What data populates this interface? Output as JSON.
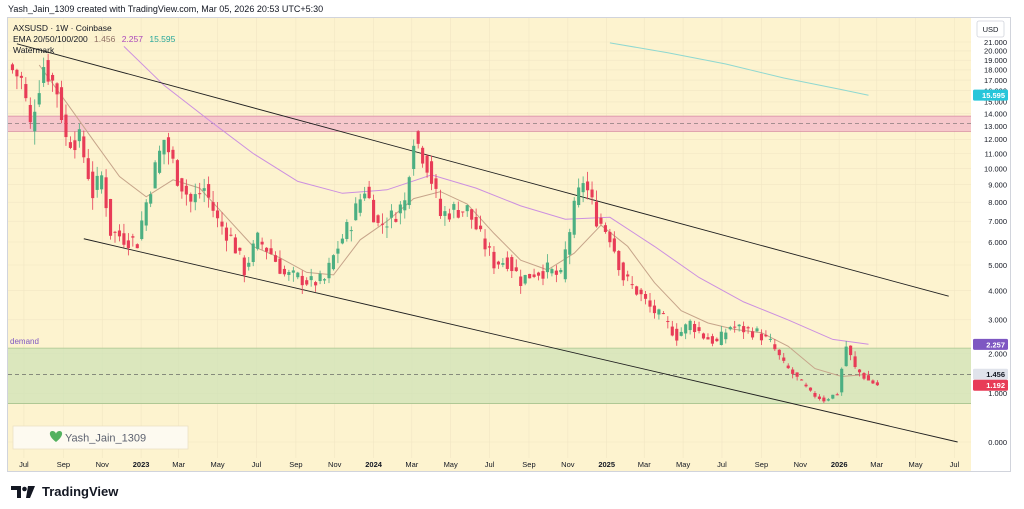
{
  "header": {
    "credit": "Yash_Jain_1309 created with TradingView.com, Mar 05, 2026 20:53 UTC+5:30"
  },
  "legend": {
    "symbol_line": "AXSUSD · 1W · Coinbase",
    "ema_label": "EMA 20/50/100/200",
    "ema_values": [
      "1.456",
      "2.257",
      "15.595"
    ],
    "watermark_label": "Watermark"
  },
  "zone_label": "demand",
  "watermark_name": "Yash_Jain_1309",
  "currency": "USD",
  "footer": {
    "brand": "TradingView"
  },
  "colors": {
    "bg": "#fdf3cf",
    "up": "#4caf82",
    "down": "#e83c57",
    "ema20": "#c6a48a",
    "ema50": "#cc8fe0",
    "ema200": "#8fd8d0",
    "supply_zone": "#f3b8c9",
    "demand_zone": "#cfe3b7",
    "trend": "#202020"
  },
  "chart_data": {
    "type": "candlestick",
    "y_scale": "log",
    "ylim": [
      0,
      21
    ],
    "y_ticks": [
      0,
      1,
      2,
      3,
      4,
      5,
      6,
      7,
      8,
      9,
      10,
      11,
      12,
      13,
      14,
      15,
      16,
      17,
      18,
      19,
      20,
      21
    ],
    "y_tick_labels": [
      "0.000",
      "1.000",
      "2.000",
      "3.000",
      "4.000",
      "5.000",
      "6.000",
      "7.000",
      "8.000",
      "9.000",
      "10.000",
      "11.000",
      "12.000",
      "13.000",
      "14.000",
      "15.000",
      "16.000",
      "17.000",
      "18.000",
      "19.000",
      "20.000",
      "21.000"
    ],
    "x_range": [
      "2022-06-06",
      "2026-07-27"
    ],
    "x_ticks": [
      {
        "date": "2022-07-01",
        "label": "Jul"
      },
      {
        "date": "2022-09-01",
        "label": "Sep"
      },
      {
        "date": "2022-11-01",
        "label": "Nov"
      },
      {
        "date": "2023-01-01",
        "label": "2023"
      },
      {
        "date": "2023-03-01",
        "label": "Mar"
      },
      {
        "date": "2023-05-01",
        "label": "May"
      },
      {
        "date": "2023-07-01",
        "label": "Jul"
      },
      {
        "date": "2023-09-01",
        "label": "Sep"
      },
      {
        "date": "2023-11-01",
        "label": "Nov"
      },
      {
        "date": "2024-01-01",
        "label": "2024"
      },
      {
        "date": "2024-03-01",
        "label": "Mar"
      },
      {
        "date": "2024-05-01",
        "label": "May"
      },
      {
        "date": "2024-07-01",
        "label": "Jul"
      },
      {
        "date": "2024-09-01",
        "label": "Sep"
      },
      {
        "date": "2024-11-01",
        "label": "Nov"
      },
      {
        "date": "2025-01-01",
        "label": "2025"
      },
      {
        "date": "2025-03-01",
        "label": "Mar"
      },
      {
        "date": "2025-05-01",
        "label": "May"
      },
      {
        "date": "2025-07-01",
        "label": "Jul"
      },
      {
        "date": "2025-09-01",
        "label": "Sep"
      },
      {
        "date": "2025-11-01",
        "label": "Nov"
      },
      {
        "date": "2026-01-01",
        "label": "2026"
      },
      {
        "date": "2026-03-01",
        "label": "Mar"
      },
      {
        "date": "2026-05-01",
        "label": "May"
      },
      {
        "date": "2026-07-01",
        "label": "Jul"
      }
    ],
    "price_tags": [
      {
        "value": 15.595,
        "label": "15.595",
        "color": "#26c6da",
        "text_color": "#ffffff"
      },
      {
        "value": 2.257,
        "label": "2.257",
        "color": "#7e57c2",
        "text_color": "#ffffff"
      },
      {
        "value": 1.456,
        "label": "1.456",
        "color": "#e0e3eb",
        "text_color": "#131722"
      },
      {
        "value": 1.192,
        "label": "1.192",
        "color": "#e83c57",
        "text_color": "#ffffff"
      }
    ],
    "zones": [
      {
        "name": "supply",
        "y_low": 12.6,
        "y_high": 13.8,
        "mid": 13.2
      },
      {
        "name": "demand",
        "y_low": 0.77,
        "y_high": 2.15,
        "mid": 1.45
      }
    ],
    "trendlines": [
      {
        "name": "upper",
        "x1": "2022-06-20",
        "y1": 20.8,
        "x2": "2026-06-22",
        "y2": 3.8
      },
      {
        "name": "lower",
        "x1": "2022-10-03",
        "y1": 6.15,
        "x2": "2026-07-06",
        "y2": 0.0
      }
    ],
    "anchors": [
      [
        "2022-06-06",
        18.5
      ],
      [
        "2022-06-27",
        17
      ],
      [
        "2022-07-11",
        13
      ],
      [
        "2022-08-01",
        18.5
      ],
      [
        "2022-08-22",
        16
      ],
      [
        "2022-09-05",
        12
      ],
      [
        "2022-09-26",
        12
      ],
      [
        "2022-10-17",
        8.5
      ],
      [
        "2022-10-31",
        9.5
      ],
      [
        "2022-11-14",
        6.5
      ],
      [
        "2022-12-05",
        6.2
      ],
      [
        "2022-12-26",
        6.0
      ],
      [
        "2023-01-16",
        9.0
      ],
      [
        "2023-02-06",
        12.0
      ],
      [
        "2023-02-27",
        9.5
      ],
      [
        "2023-03-20",
        8.0
      ],
      [
        "2023-04-10",
        8.8
      ],
      [
        "2023-05-01",
        7.0
      ],
      [
        "2023-05-22",
        6.2
      ],
      [
        "2023-06-12",
        4.8
      ],
      [
        "2023-07-03",
        6.1
      ],
      [
        "2023-07-24",
        5.5
      ],
      [
        "2023-08-14",
        4.6
      ],
      [
        "2023-09-04",
        4.5
      ],
      [
        "2023-09-25",
        4.3
      ],
      [
        "2023-10-16",
        4.4
      ],
      [
        "2023-11-06",
        5.8
      ],
      [
        "2023-11-27",
        7.0
      ],
      [
        "2023-12-18",
        8.8
      ],
      [
        "2024-01-08",
        6.8
      ],
      [
        "2024-01-29",
        7.2
      ],
      [
        "2024-02-19",
        8.0
      ],
      [
        "2024-03-04",
        12.3
      ],
      [
        "2024-03-25",
        10.3
      ],
      [
        "2024-04-15",
        7.3
      ],
      [
        "2024-05-06",
        7.6
      ],
      [
        "2024-05-27",
        7.6
      ],
      [
        "2024-06-17",
        6.2
      ],
      [
        "2024-07-08",
        5.1
      ],
      [
        "2024-07-29",
        5.2
      ],
      [
        "2024-08-19",
        4.4
      ],
      [
        "2024-09-09",
        4.7
      ],
      [
        "2024-09-30",
        4.8
      ],
      [
        "2024-10-21",
        4.5
      ],
      [
        "2024-11-11",
        7.6
      ],
      [
        "2024-11-25",
        9.3
      ],
      [
        "2024-12-16",
        7.2
      ],
      [
        "2025-01-06",
        6.3
      ],
      [
        "2025-01-27",
        4.5
      ],
      [
        "2025-02-17",
        4.0
      ],
      [
        "2025-03-10",
        3.4
      ],
      [
        "2025-03-31",
        3.0
      ],
      [
        "2025-04-21",
        2.5
      ],
      [
        "2025-05-12",
        2.9
      ],
      [
        "2025-06-02",
        2.5
      ],
      [
        "2025-06-23",
        2.3
      ],
      [
        "2025-07-14",
        2.8
      ],
      [
        "2025-08-04",
        2.7
      ],
      [
        "2025-08-25",
        2.6
      ],
      [
        "2025-09-15",
        2.3
      ],
      [
        "2025-10-06",
        1.7
      ],
      [
        "2025-10-27",
        1.35
      ],
      [
        "2025-11-17",
        1.0
      ],
      [
        "2025-12-08",
        0.85
      ],
      [
        "2025-12-29",
        1.0
      ],
      [
        "2026-01-12",
        2.2
      ],
      [
        "2026-01-26",
        1.6
      ],
      [
        "2026-02-16",
        1.3
      ],
      [
        "2026-03-02",
        1.192
      ]
    ],
    "ema_series": [
      {
        "name": "EMA 20",
        "points": [
          [
            "2022-07-25",
            18.5
          ],
          [
            "2022-09-05",
            15.0
          ],
          [
            "2022-10-17",
            12.0
          ],
          [
            "2022-11-28",
            9.5
          ],
          [
            "2023-01-09",
            8.3
          ],
          [
            "2023-02-20",
            9.3
          ],
          [
            "2023-04-03",
            8.8
          ],
          [
            "2023-05-15",
            7.2
          ],
          [
            "2023-06-26",
            5.8
          ],
          [
            "2023-08-07",
            5.3
          ],
          [
            "2023-09-18",
            4.7
          ],
          [
            "2023-10-30",
            4.6
          ],
          [
            "2023-12-11",
            6.1
          ],
          [
            "2024-01-22",
            7.0
          ],
          [
            "2024-03-04",
            8.2
          ],
          [
            "2024-04-15",
            8.6
          ],
          [
            "2024-05-27",
            7.9
          ],
          [
            "2024-07-08",
            6.4
          ],
          [
            "2024-08-19",
            5.2
          ],
          [
            "2024-09-30",
            4.8
          ],
          [
            "2024-11-11",
            5.5
          ],
          [
            "2024-12-23",
            6.8
          ],
          [
            "2025-02-03",
            5.8
          ],
          [
            "2025-03-17",
            4.3
          ],
          [
            "2025-04-28",
            3.3
          ],
          [
            "2025-06-09",
            2.9
          ],
          [
            "2025-07-21",
            2.7
          ],
          [
            "2025-09-01",
            2.6
          ],
          [
            "2025-10-13",
            2.2
          ],
          [
            "2025-11-24",
            1.6
          ],
          [
            "2026-01-05",
            1.4
          ],
          [
            "2026-02-16",
            1.456
          ]
        ]
      },
      {
        "name": "EMA 50",
        "points": [
          [
            "2022-12-05",
            20.5
          ],
          [
            "2023-02-06",
            16.5
          ],
          [
            "2023-04-17",
            13.5
          ],
          [
            "2023-06-26",
            11.0
          ],
          [
            "2023-09-04",
            9.2
          ],
          [
            "2023-11-13",
            8.5
          ],
          [
            "2024-01-22",
            8.7
          ],
          [
            "2024-04-01",
            9.6
          ],
          [
            "2024-06-10",
            8.8
          ],
          [
            "2024-08-19",
            7.8
          ],
          [
            "2024-10-28",
            7.1
          ],
          [
            "2025-01-06",
            7.2
          ],
          [
            "2025-03-17",
            5.8
          ],
          [
            "2025-05-26",
            4.5
          ],
          [
            "2025-08-04",
            3.6
          ],
          [
            "2025-10-13",
            3.0
          ],
          [
            "2025-12-22",
            2.4
          ],
          [
            "2026-02-16",
            2.257
          ]
        ]
      },
      {
        "name": "EMA 200",
        "points": [
          [
            "2025-01-06",
            20.9
          ],
          [
            "2025-04-07",
            19.8
          ],
          [
            "2025-07-07",
            18.6
          ],
          [
            "2025-10-06",
            17.2
          ],
          [
            "2026-01-05",
            16.1
          ],
          [
            "2026-02-16",
            15.595
          ]
        ]
      }
    ]
  }
}
